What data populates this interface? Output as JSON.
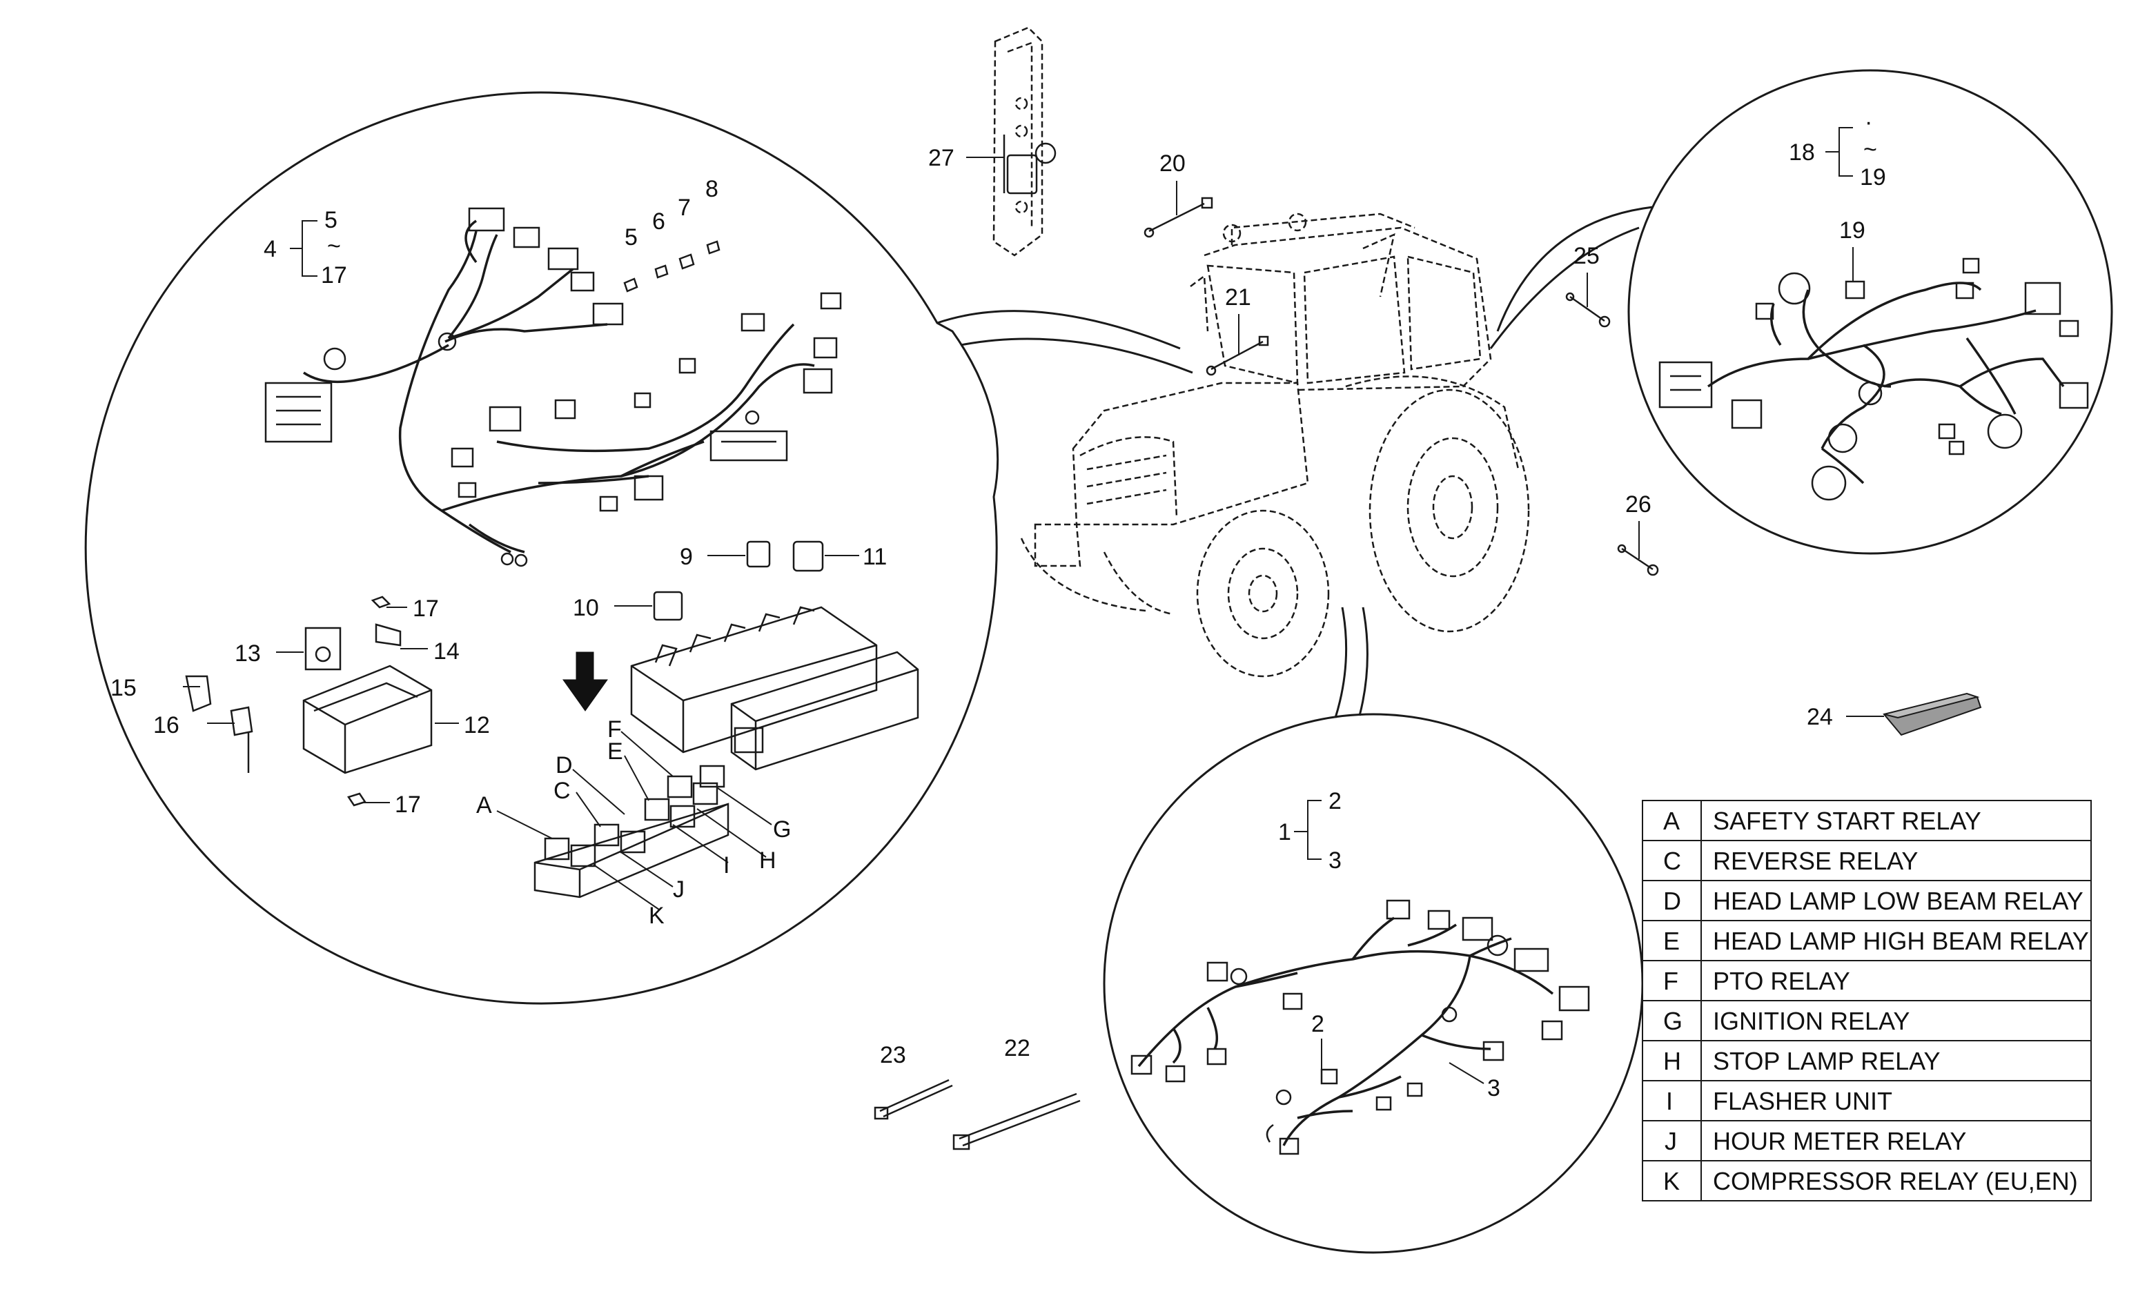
{
  "callouts": {
    "c1": "1",
    "c2": "2",
    "c2b": "2",
    "c3": "3",
    "c3b": "3",
    "c4": "4",
    "c5": "5",
    "c5b": "5",
    "c6": "6",
    "c7": "7",
    "c8": "8",
    "c9": "9",
    "c10": "10",
    "c11": "11",
    "c12": "12",
    "c13": "13",
    "c14": "14",
    "c15": "15",
    "c16": "16",
    "c17": "17",
    "c17b": "17",
    "c17c": "17",
    "c18": "18",
    "c19": "19",
    "c19b": "19",
    "c20": "20",
    "c21": "21",
    "c22": "22",
    "c23": "23",
    "c24": "24",
    "c25": "25",
    "c26": "26",
    "c27": "27",
    "tilde": "~",
    "dot": "·",
    "lA": "A",
    "lC": "C",
    "lD": "D",
    "lE": "E",
    "lF": "F",
    "lG": "G",
    "lH": "H",
    "lI": "I",
    "lJ": "J",
    "lK": "K"
  },
  "legend": {
    "rows": [
      {
        "key": "A",
        "label": "SAFETY START RELAY"
      },
      {
        "key": "C",
        "label": "REVERSE RELAY"
      },
      {
        "key": "D",
        "label": "HEAD LAMP LOW BEAM RELAY"
      },
      {
        "key": "E",
        "label": "HEAD LAMP HIGH BEAM RELAY"
      },
      {
        "key": "F",
        "label": "PTO RELAY"
      },
      {
        "key": "G",
        "label": "IGNITION RELAY"
      },
      {
        "key": "H",
        "label": "STOP LAMP RELAY"
      },
      {
        "key": "I",
        "label": "FLASHER UNIT"
      },
      {
        "key": "J",
        "label": "HOUR METER RELAY"
      },
      {
        "key": "K",
        "label": "COMPRESSOR RELAY (EU,EN)"
      }
    ]
  },
  "colors": {
    "line": "#1a1a1a",
    "paper": "#ffffff",
    "manual": "#9a9a9a"
  }
}
